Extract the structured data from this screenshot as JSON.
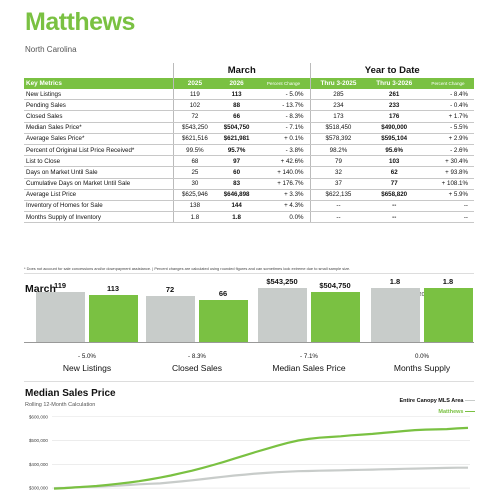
{
  "header": {
    "title": "Matthews",
    "subtitle": "North Carolina"
  },
  "metrics_table": {
    "group_march": "March",
    "group_ytd": "Year to Date",
    "col_metric": "Key Metrics",
    "col_2025": "2025",
    "col_2026": "2026",
    "col_pct": "Percent Change",
    "col_thru2025": "Thru 3-2025",
    "col_thru2026": "Thru 3-2026",
    "col_pct2": "Percent Change",
    "rows": [
      {
        "metric": "New Listings",
        "m2025": "119",
        "m2026": "113",
        "mpct": "- 5.0%",
        "y2025": "285",
        "y2026": "261",
        "ypct": "- 8.4%"
      },
      {
        "metric": "Pending Sales",
        "m2025": "102",
        "m2026": "88",
        "mpct": "- 13.7%",
        "y2025": "234",
        "y2026": "233",
        "ypct": "- 0.4%"
      },
      {
        "metric": "Closed Sales",
        "m2025": "72",
        "m2026": "66",
        "mpct": "- 8.3%",
        "y2025": "173",
        "y2026": "176",
        "ypct": "+ 1.7%"
      },
      {
        "metric": "Median Sales Price*",
        "m2025": "$543,250",
        "m2026": "$504,750",
        "mpct": "- 7.1%",
        "y2025": "$518,450",
        "y2026": "$490,000",
        "ypct": "- 5.5%"
      },
      {
        "metric": "Average Sales Price*",
        "m2025": "$621,516",
        "m2026": "$621,981",
        "mpct": "+ 0.1%",
        "y2025": "$578,392",
        "y2026": "$595,104",
        "ypct": "+ 2.9%"
      },
      {
        "metric": "Percent of Original List Price Received*",
        "m2025": "99.5%",
        "m2026": "95.7%",
        "mpct": "- 3.8%",
        "y2025": "98.2%",
        "y2026": "95.6%",
        "ypct": "- 2.6%"
      },
      {
        "metric": "List to Close",
        "m2025": "68",
        "m2026": "97",
        "mpct": "+ 42.6%",
        "y2025": "79",
        "y2026": "103",
        "ypct": "+ 30.4%"
      },
      {
        "metric": "Days on Market Until Sale",
        "m2025": "25",
        "m2026": "60",
        "mpct": "+ 140.0%",
        "y2025": "32",
        "y2026": "62",
        "ypct": "+ 93.8%"
      },
      {
        "metric": "Cumulative Days on Market Until Sale",
        "m2025": "30",
        "m2026": "83",
        "mpct": "+ 176.7%",
        "y2025": "37",
        "y2026": "77",
        "ypct": "+ 108.1%"
      },
      {
        "metric": "Average List Price",
        "m2025": "$625,946",
        "m2026": "$646,898",
        "mpct": "+ 3.3%",
        "y2025": "$622,135",
        "y2026": "$658,820",
        "ypct": "+ 5.9%"
      },
      {
        "metric": "Inventory of Homes for Sale",
        "m2025": "138",
        "m2026": "144",
        "mpct": "+ 4.3%",
        "y2025": "--",
        "y2026": "--",
        "ypct": "--"
      },
      {
        "metric": "Months Supply of Inventory",
        "m2025": "1.8",
        "m2026": "1.8",
        "mpct": "0.0%",
        "y2025": "--",
        "y2026": "--",
        "ypct": "--"
      }
    ],
    "footnote": "* Does not account for sale concessions and/or downpayment assistance.  |  Percent changes are calculated using rounded figures and can sometimes look extreme due to small sample size."
  },
  "bar_section": {
    "title": "March",
    "legend_2025": "2025",
    "legend_2026": "2026",
    "colors": {
      "y2025": "#c8ccca",
      "y2026": "#7ac142"
    }
  },
  "chart_data": [
    {
      "type": "bar",
      "title": "March",
      "categories": [
        "New Listings",
        "Closed Sales",
        "Median Sales Price",
        "Months Supply"
      ],
      "series": [
        {
          "name": "2025",
          "values": [
            119,
            72,
            543250,
            1.8
          ],
          "labels": [
            "119",
            "72",
            "$543,250",
            "1.8"
          ]
        },
        {
          "name": "2026",
          "values": [
            113,
            66,
            504750,
            1.8
          ],
          "labels": [
            "113",
            "66",
            "$504,750",
            "1.8"
          ]
        }
      ],
      "percent_changes": [
        "- 5.0%",
        "- 8.3%",
        "- 7.1%",
        "0.0%"
      ]
    },
    {
      "type": "line",
      "title": "Median Sales Price",
      "subtitle": "Rolling 12-Month Calculation",
      "ylabel": "",
      "yticks": [
        "$600,000",
        "$500,000",
        "$400,000",
        "$300,000"
      ],
      "ylim": [
        250000,
        620000
      ],
      "series": [
        {
          "name": "Entire Canopy MLS Area",
          "color": "#c8ccca",
          "values": [
            300000,
            301000,
            303000,
            305000,
            306000,
            308000,
            310000,
            313000,
            316000,
            318000,
            320000,
            324000,
            328000,
            333000,
            338000,
            343000,
            348000,
            353000,
            357000,
            361000,
            364000,
            367000,
            369000,
            371000,
            372000,
            373000,
            374000,
            375000,
            376000,
            377000,
            378000,
            379000,
            380000,
            381000,
            382000,
            383000,
            384000,
            385000,
            386000,
            386000
          ]
        },
        {
          "name": "Matthews",
          "color": "#7ac142",
          "values": [
            298000,
            300000,
            303000,
            306000,
            309000,
            313000,
            318000,
            323000,
            329000,
            336000,
            344000,
            353000,
            363000,
            373000,
            385000,
            397000,
            410000,
            424000,
            438000,
            452000,
            465000,
            478000,
            490000,
            500000,
            507000,
            512000,
            515000,
            518000,
            522000,
            525000,
            528000,
            532000,
            536000,
            540000,
            544000,
            546000,
            547000,
            548000,
            551000,
            553000
          ]
        }
      ]
    }
  ]
}
